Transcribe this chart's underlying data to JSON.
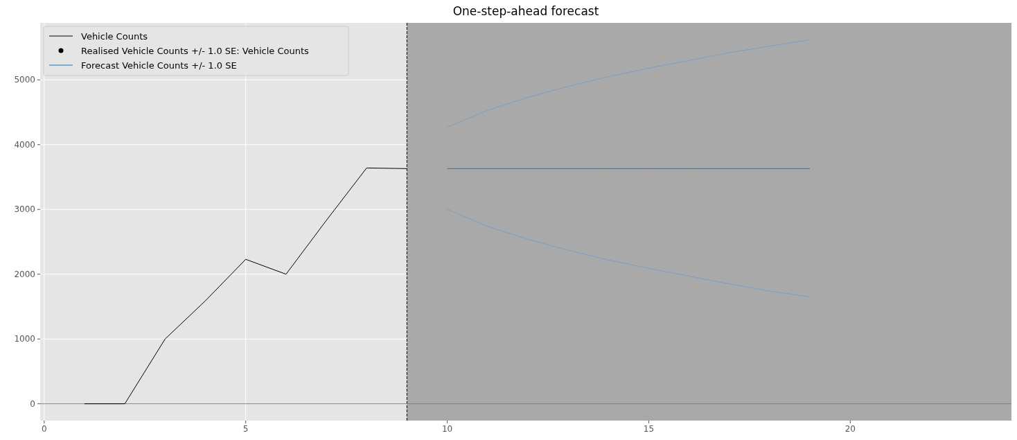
{
  "chart_data": {
    "type": "line",
    "title": "One-step-ahead forecast",
    "xlim": [
      -0.1,
      24
    ],
    "xticks": [
      0,
      5,
      10,
      15,
      20
    ],
    "ylim": [
      -260,
      5880
    ],
    "yticks": [
      0,
      1000,
      2000,
      3000,
      4000,
      5000
    ],
    "grid": true,
    "legend": "top left",
    "series": [
      {
        "name": "Vehicle Counts",
        "color": "#000000",
        "x": [
          1,
          2,
          3,
          4,
          5,
          6,
          7,
          8,
          9
        ],
        "values": [
          0,
          0,
          1000,
          1590,
          2230,
          2000,
          2830,
          3640,
          3630
        ]
      },
      {
        "name": "Realised Vehicle Counts +/- 1.0 SE: Vehicle Counts",
        "type": "scatter",
        "marker": "circle",
        "color": "#000000"
      },
      {
        "name": "Forecast Vehicle Counts +/- 1.0 SE",
        "color": "#1f77b4",
        "x": [
          10,
          11,
          12,
          13,
          14,
          15,
          16,
          17,
          18,
          19
        ],
        "values": [
          3630,
          3630,
          3630,
          3630,
          3630,
          3630,
          3630,
          3630,
          3630,
          3630
        ]
      },
      {
        "color": "#7a9fc4",
        "x": [
          10,
          11,
          12,
          13,
          14,
          15,
          16,
          17,
          18,
          19
        ],
        "values": [
          4270,
          4530,
          4730,
          4900,
          5050,
          5180,
          5300,
          5420,
          5520,
          5620
        ]
      },
      {
        "color": "#7a9fc4",
        "x": [
          10,
          11,
          12,
          13,
          14,
          15,
          16,
          17,
          18,
          19
        ],
        "values": [
          3000,
          2740,
          2540,
          2370,
          2220,
          2090,
          1970,
          1850,
          1740,
          1650
        ]
      }
    ],
    "bands": [
      {
        "axis": "x",
        "from": 9,
        "to": 24,
        "color": "#a9a9a9"
      }
    ],
    "ref_lines": [
      {
        "axis": "x",
        "value": 9,
        "color": "#000000",
        "line_style": "dashed"
      },
      {
        "axis": "y",
        "value": 0,
        "color": "#808080",
        "line_style": "solid"
      }
    ]
  }
}
